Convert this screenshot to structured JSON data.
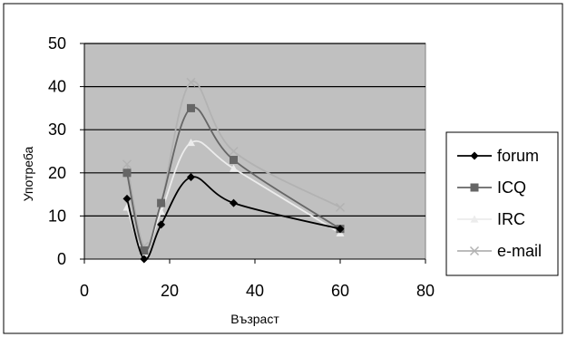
{
  "chart_data": {
    "type": "scatter",
    "title": "",
    "xlabel": "Възраст",
    "ylabel": "Употреба",
    "xlim": [
      0,
      80
    ],
    "ylim": [
      0,
      50
    ],
    "x_ticks": [
      "0",
      "20",
      "40",
      "60",
      "80"
    ],
    "y_ticks": [
      "0",
      "10",
      "20",
      "30",
      "40",
      "50"
    ],
    "grid": "horizontal major gridlines",
    "plot_background": "#c0c0c0",
    "smooth_lines": true,
    "legend_position": "right",
    "series": [
      {
        "name": "forum",
        "color": "#000000",
        "marker": "diamond",
        "points": [
          [
            10,
            14
          ],
          [
            14,
            0
          ],
          [
            18,
            8
          ],
          [
            25,
            19
          ],
          [
            35,
            13
          ],
          [
            60,
            7
          ]
        ]
      },
      {
        "name": "ICQ",
        "color": "#666666",
        "marker": "square",
        "points": [
          [
            10,
            20
          ],
          [
            14,
            2
          ],
          [
            18,
            13
          ],
          [
            25,
            35
          ],
          [
            35,
            23
          ],
          [
            60,
            7
          ]
        ]
      },
      {
        "name": "IRC",
        "color": "#ececec",
        "marker": "triangle",
        "points": [
          [
            10,
            12
          ],
          [
            14,
            1.5
          ],
          [
            18,
            11
          ],
          [
            25,
            27
          ],
          [
            35,
            21
          ],
          [
            60,
            6
          ]
        ]
      },
      {
        "name": "e-mail",
        "color": "#b2b2b2",
        "marker": "x",
        "points": [
          [
            10,
            22
          ],
          [
            14,
            3
          ],
          [
            18,
            13
          ],
          [
            25,
            41
          ],
          [
            35,
            25
          ],
          [
            60,
            12
          ]
        ]
      }
    ]
  }
}
